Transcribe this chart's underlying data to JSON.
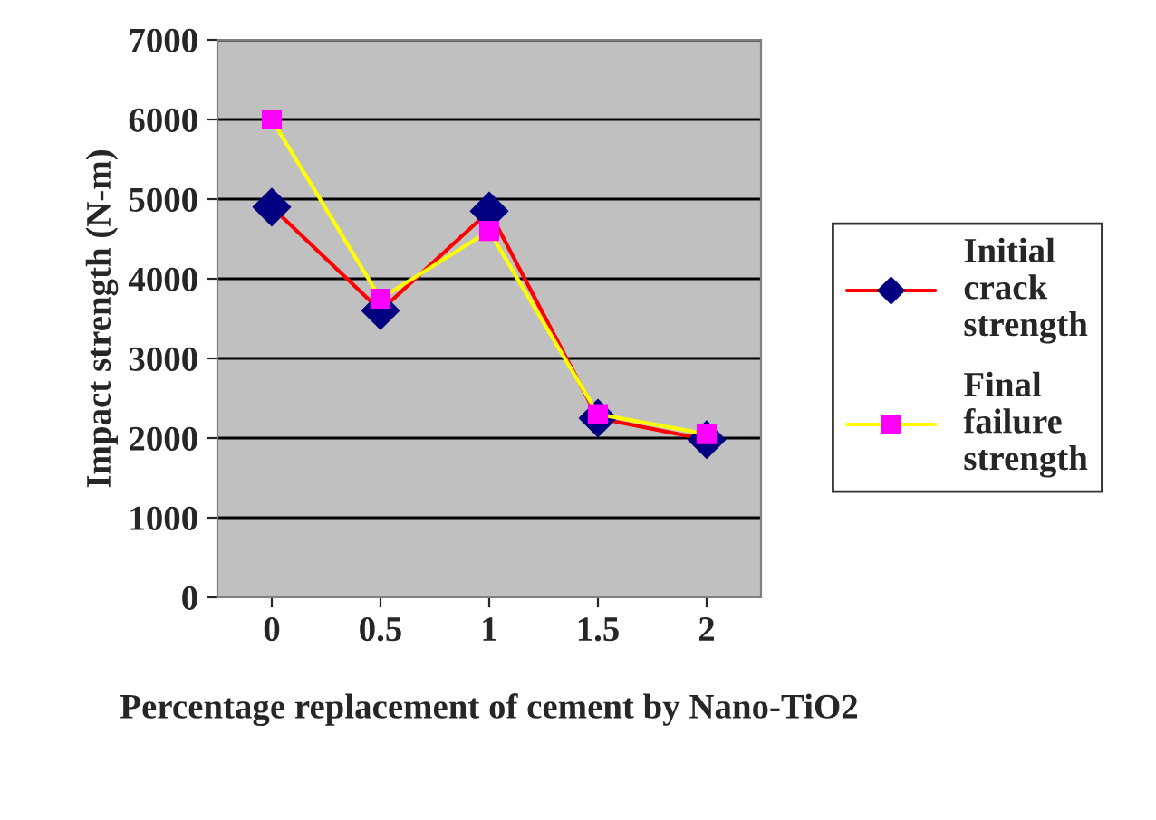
{
  "chart_data": {
    "type": "line",
    "xlabel": "Percentage replacement of cement by Nano-TiO2",
    "ylabel": "Impact strength (N-m)",
    "categories": [
      "0",
      "0.5",
      "1",
      "1.5",
      "2"
    ],
    "series": [
      {
        "name": "Initial crack strength",
        "color": "#ff0000",
        "colors": [
          "#000080",
          "#000080",
          "#000080",
          "#000080",
          "#000080"
        ],
        "marker": "diamond",
        "values": [
          4900,
          3600,
          4850,
          2250,
          1980
        ]
      },
      {
        "name": "Final failure strength",
        "color": "#ffff00",
        "colors": [
          "#ff00ff",
          "#ff00ff",
          "#ff00ff",
          "#ff00ff",
          "#ff00ff"
        ],
        "marker": "square",
        "values": [
          6000,
          3750,
          4600,
          2300,
          2050
        ]
      }
    ],
    "ylim": [
      0,
      7000
    ],
    "yticks": [
      0,
      1000,
      2000,
      3000,
      4000,
      5000,
      6000,
      7000
    ],
    "grid": "y",
    "legend": "right"
  }
}
